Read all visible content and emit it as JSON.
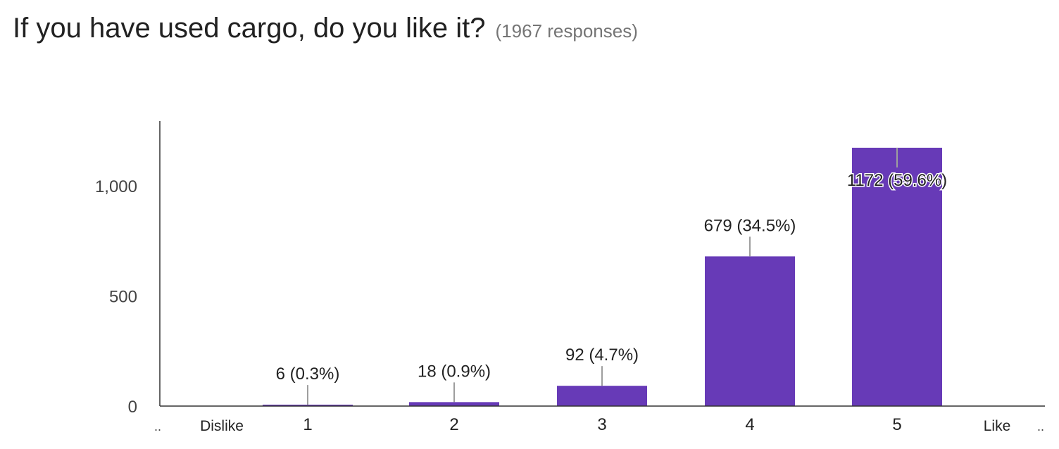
{
  "header": {
    "title": "If you have used cargo, do you like it?",
    "responses": "(1967 responses)"
  },
  "chart_data": {
    "type": "bar",
    "title": "If you have used cargo, do you like it?",
    "subtitle": "(1967 responses)",
    "categories": [
      "1",
      "2",
      "3",
      "4",
      "5"
    ],
    "values": [
      6,
      18,
      92,
      679,
      1172
    ],
    "data_labels": [
      "6 (0.3%)",
      "18 (0.9%)",
      "92 (4.7%)",
      "679 (34.5%)",
      "1172 (59.6%)"
    ],
    "x_end_labels": {
      "low": "Dislike",
      "high": "Like"
    },
    "edge_markers": "..",
    "yticks": [
      0,
      500,
      1000
    ],
    "ytick_labels": [
      "0",
      "500",
      "1,000"
    ],
    "ylim": [
      0,
      1300
    ],
    "xlabel": "",
    "ylabel": "",
    "grid": false,
    "legend": "none",
    "colors": {
      "bar": "#673ab7",
      "axis": "#333333",
      "leader": "#9e9e9e"
    }
  }
}
